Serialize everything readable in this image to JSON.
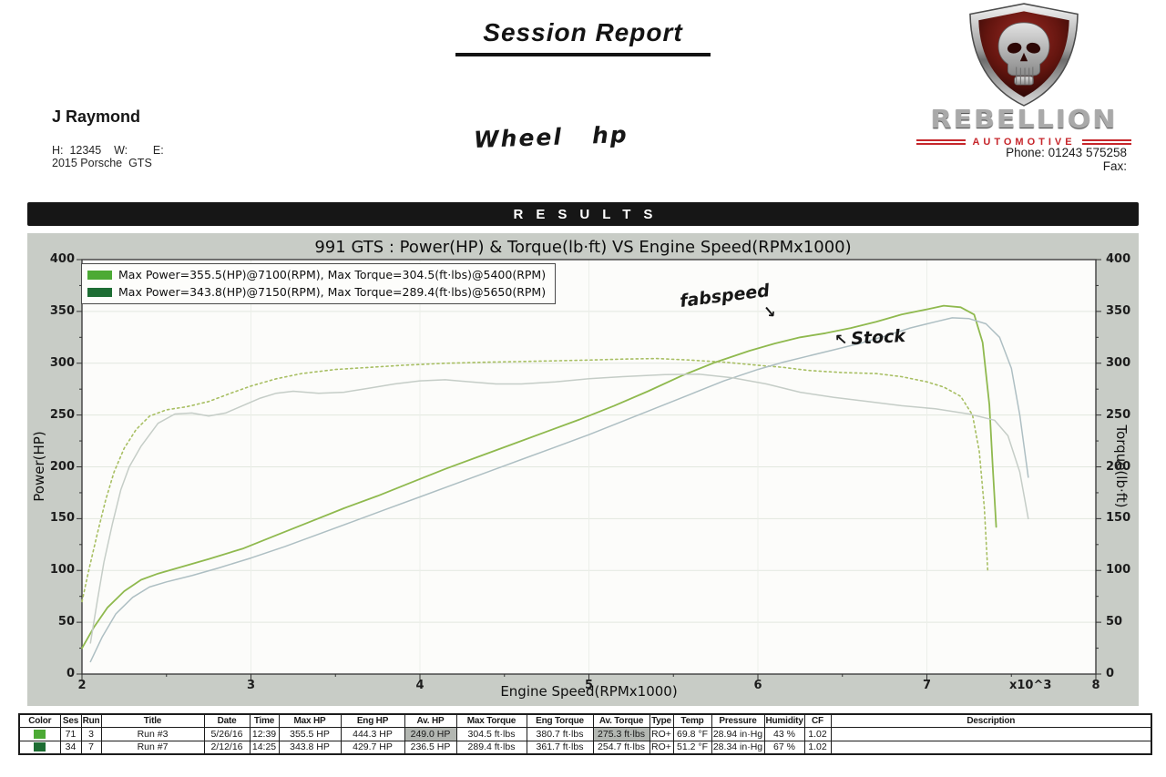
{
  "header": {
    "report_title": "Session Report",
    "customer_name": "J Raymond",
    "contact_line": "H:  12345    W:        E:",
    "vehicle_line": "2015 Porsche  GTS",
    "handwritten_note": "Wheel   hp",
    "brand_name": "REBELLION",
    "brand_sub": "AUTOMOTIVE",
    "phone": "Phone: 01243 575258",
    "fax": "Fax:"
  },
  "results_bar": {
    "label": "RESULTS"
  },
  "chart_data": {
    "type": "line",
    "title": "991 GTS : Power(HP) & Torque(lb·ft) VS Engine Speed(RPMx1000)",
    "xlabel": "Engine Speed(RPMx1000)",
    "x_unit_label": "x10^3",
    "ylabel_left": "Power(HP)",
    "ylabel_right": "Torque(lb·ft)",
    "xlim": [
      2,
      8
    ],
    "ylim": [
      0,
      400
    ],
    "x_ticks": [
      2,
      3,
      4,
      5,
      6,
      7,
      8
    ],
    "y_ticks": [
      0,
      50,
      100,
      150,
      200,
      250,
      300,
      350,
      400
    ],
    "grid": true,
    "legend_position": "top-left",
    "legend": [
      {
        "color": "#4caa35",
        "label": "Max Power=355.5(HP)@7100(RPM), Max Torque=304.5(ft·lbs)@5400(RPM)"
      },
      {
        "color": "#1d6d33",
        "label": "Max Power=343.8(HP)@7150(RPM), Max Torque=289.4(ft·lbs)@5650(RPM)"
      }
    ],
    "annotations": [
      {
        "text": "fabspeed",
        "arrow": "↘",
        "points_to": "run3-power-curve"
      },
      {
        "text": "Stock",
        "arrow": "↖",
        "points_to": "run7-power-curve"
      }
    ],
    "series": [
      {
        "name": "Run #3 Power (fabspeed)",
        "unit": "HP",
        "color": "#8fb94e",
        "style": "solid",
        "width": 1.8,
        "points": [
          [
            2.0,
            25
          ],
          [
            2.07,
            45
          ],
          [
            2.15,
            64
          ],
          [
            2.25,
            80
          ],
          [
            2.35,
            91
          ],
          [
            2.45,
            97
          ],
          [
            2.6,
            104
          ],
          [
            2.75,
            111
          ],
          [
            2.95,
            121
          ],
          [
            3.15,
            134
          ],
          [
            3.35,
            147
          ],
          [
            3.55,
            160
          ],
          [
            3.75,
            172
          ],
          [
            3.95,
            185
          ],
          [
            4.15,
            198
          ],
          [
            4.35,
            210
          ],
          [
            4.55,
            222
          ],
          [
            4.75,
            234
          ],
          [
            4.95,
            246
          ],
          [
            5.15,
            259
          ],
          [
            5.35,
            273
          ],
          [
            5.55,
            288
          ],
          [
            5.75,
            301
          ],
          [
            5.95,
            312
          ],
          [
            6.1,
            319
          ],
          [
            6.25,
            325
          ],
          [
            6.4,
            329
          ],
          [
            6.55,
            334
          ],
          [
            6.7,
            340
          ],
          [
            6.85,
            347
          ],
          [
            7.0,
            352
          ],
          [
            7.1,
            355.5
          ],
          [
            7.2,
            354
          ],
          [
            7.28,
            347
          ],
          [
            7.33,
            320
          ],
          [
            7.37,
            260
          ],
          [
            7.39,
            200
          ],
          [
            7.41,
            142
          ]
        ]
      },
      {
        "name": "Run #3 Torque (fabspeed)",
        "unit": "ft·lbs",
        "color": "#a8bf63",
        "style": "dotted",
        "width": 1.6,
        "points": [
          [
            2.0,
            70
          ],
          [
            2.04,
            100
          ],
          [
            2.09,
            135
          ],
          [
            2.14,
            168
          ],
          [
            2.19,
            195
          ],
          [
            2.25,
            218
          ],
          [
            2.32,
            236
          ],
          [
            2.4,
            249
          ],
          [
            2.5,
            255
          ],
          [
            2.62,
            258
          ],
          [
            2.75,
            263
          ],
          [
            2.88,
            271
          ],
          [
            3.0,
            278
          ],
          [
            3.15,
            285
          ],
          [
            3.3,
            290
          ],
          [
            3.5,
            294
          ],
          [
            3.7,
            296
          ],
          [
            3.9,
            298
          ],
          [
            4.15,
            300
          ],
          [
            4.4,
            301
          ],
          [
            4.7,
            302
          ],
          [
            5.0,
            303
          ],
          [
            5.2,
            304
          ],
          [
            5.4,
            304.5
          ],
          [
            5.6,
            303
          ],
          [
            5.8,
            301
          ],
          [
            6.0,
            298
          ],
          [
            6.15,
            296
          ],
          [
            6.3,
            293
          ],
          [
            6.5,
            291
          ],
          [
            6.7,
            290
          ],
          [
            6.85,
            287
          ],
          [
            7.0,
            282
          ],
          [
            7.1,
            277
          ],
          [
            7.2,
            268
          ],
          [
            7.27,
            250
          ],
          [
            7.31,
            215
          ],
          [
            7.34,
            160
          ],
          [
            7.36,
            100
          ]
        ]
      },
      {
        "name": "Run #7 Power (stock)",
        "unit": "HP",
        "color": "#aebfc3",
        "style": "solid",
        "width": 1.5,
        "points": [
          [
            2.05,
            12
          ],
          [
            2.12,
            36
          ],
          [
            2.2,
            58
          ],
          [
            2.3,
            74
          ],
          [
            2.4,
            84
          ],
          [
            2.5,
            89
          ],
          [
            2.65,
            95
          ],
          [
            2.8,
            102
          ],
          [
            3.0,
            112
          ],
          [
            3.2,
            123
          ],
          [
            3.4,
            135
          ],
          [
            3.6,
            147
          ],
          [
            3.8,
            159
          ],
          [
            4.0,
            171
          ],
          [
            4.2,
            183
          ],
          [
            4.4,
            195
          ],
          [
            4.6,
            207
          ],
          [
            4.8,
            219
          ],
          [
            5.0,
            231
          ],
          [
            5.2,
            244
          ],
          [
            5.4,
            257
          ],
          [
            5.6,
            270
          ],
          [
            5.8,
            283
          ],
          [
            6.0,
            294
          ],
          [
            6.15,
            301
          ],
          [
            6.3,
            307
          ],
          [
            6.45,
            313
          ],
          [
            6.6,
            319
          ],
          [
            6.75,
            326
          ],
          [
            6.9,
            334
          ],
          [
            7.05,
            340
          ],
          [
            7.15,
            343.8
          ],
          [
            7.25,
            343
          ],
          [
            7.35,
            338
          ],
          [
            7.43,
            325
          ],
          [
            7.5,
            295
          ],
          [
            7.55,
            250
          ],
          [
            7.6,
            190
          ]
        ]
      },
      {
        "name": "Run #7 Torque (stock)",
        "unit": "ft·lbs",
        "color": "#c5cdc7",
        "style": "solid",
        "width": 1.5,
        "points": [
          [
            2.05,
            30
          ],
          [
            2.09,
            70
          ],
          [
            2.13,
            108
          ],
          [
            2.18,
            145
          ],
          [
            2.23,
            178
          ],
          [
            2.28,
            200
          ],
          [
            2.35,
            220
          ],
          [
            2.45,
            242
          ],
          [
            2.55,
            251
          ],
          [
            2.65,
            252
          ],
          [
            2.75,
            249
          ],
          [
            2.85,
            252
          ],
          [
            2.95,
            259
          ],
          [
            3.05,
            266
          ],
          [
            3.15,
            271
          ],
          [
            3.25,
            273
          ],
          [
            3.4,
            271
          ],
          [
            3.55,
            272
          ],
          [
            3.7,
            276
          ],
          [
            3.85,
            280
          ],
          [
            4.0,
            283
          ],
          [
            4.15,
            284
          ],
          [
            4.3,
            282
          ],
          [
            4.45,
            280
          ],
          [
            4.6,
            280
          ],
          [
            4.8,
            282
          ],
          [
            5.0,
            285
          ],
          [
            5.2,
            287
          ],
          [
            5.45,
            289
          ],
          [
            5.65,
            289.4
          ],
          [
            5.85,
            286
          ],
          [
            6.05,
            280
          ],
          [
            6.25,
            272
          ],
          [
            6.45,
            267
          ],
          [
            6.65,
            263
          ],
          [
            6.85,
            259
          ],
          [
            7.05,
            256
          ],
          [
            7.25,
            251
          ],
          [
            7.4,
            245
          ],
          [
            7.48,
            230
          ],
          [
            7.55,
            195
          ],
          [
            7.6,
            150
          ]
        ]
      }
    ]
  },
  "results_table": {
    "headers": [
      "Color",
      "Ses",
      "Run",
      "Title",
      "Date",
      "Time",
      "Max HP",
      "Eng HP",
      "Av. HP",
      "Max Torque",
      "Eng Torque",
      "Av. Torque",
      "Type",
      "Temp",
      "Pressure",
      "Humidity",
      "CF",
      "Description"
    ],
    "rows": [
      {
        "swatch": "#4caa35",
        "cells": [
          "71",
          "3",
          "Run #3",
          "5/26/16",
          "12:39",
          "355.5 HP",
          "444.3 HP",
          "249.0 HP",
          "304.5 ft·lbs",
          "380.7 ft·lbs",
          "275.3 ft·lbs",
          "RO+",
          "69.8 °F",
          "28.94 in·Hg",
          "43 %",
          "1.02",
          ""
        ]
      },
      {
        "swatch": "#1d6d33",
        "cells": [
          "34",
          "7",
          "Run #7",
          "2/12/16",
          "14:25",
          "343.8 HP",
          "429.7 HP",
          "236.5 HP",
          "289.4 ft·lbs",
          "361.7 ft·lbs",
          "254.7 ft·lbs",
          "RO+",
          "51.2 °F",
          "28.34 in·Hg",
          "67 %",
          "1.02",
          ""
        ]
      }
    ],
    "shaded_cells": [
      [
        0,
        7
      ],
      [
        0,
        10
      ]
    ]
  }
}
